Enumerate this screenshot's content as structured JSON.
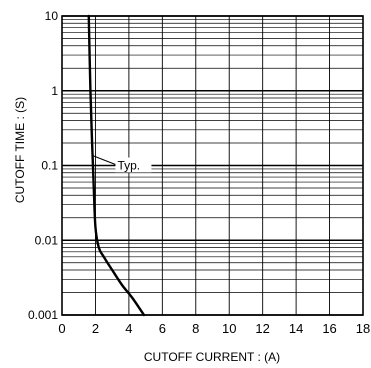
{
  "chart_data": {
    "type": "line",
    "title": "",
    "xlabel": "CUTOFF  CURRENT :  (A)",
    "ylabel": "CUTOFF  TIME :  (S)",
    "xlim": [
      0,
      18
    ],
    "ylim": [
      0.001,
      10
    ],
    "y_scale": "log",
    "grid": true,
    "x_ticks": [
      0,
      2,
      4,
      6,
      8,
      10,
      12,
      14,
      16,
      18
    ],
    "x_tick_labels": [
      "0",
      "2",
      "4",
      "6",
      "8",
      "10",
      "12",
      "14",
      "16",
      "18"
    ],
    "y_ticks": [
      0.001,
      0.01,
      0.1,
      1,
      10
    ],
    "y_tick_labels": [
      "0.001",
      "0.01",
      "0.1",
      "1",
      "10"
    ],
    "series": [
      {
        "name": "Typ.",
        "x": [
          1.6,
          1.7,
          1.8,
          1.9,
          2.0,
          2.2,
          2.5,
          3.0,
          3.6,
          4.2,
          4.9
        ],
        "y": [
          10,
          1,
          0.2,
          0.05,
          0.015,
          0.008,
          0.006,
          0.004,
          0.0025,
          0.0017,
          0.001
        ]
      }
    ],
    "annotations": [
      {
        "text": "Typ.",
        "x": 2.0,
        "y": 0.1
      }
    ],
    "colors": {
      "line": "#000000",
      "grid": "#000000",
      "background": "#ffffff"
    }
  }
}
